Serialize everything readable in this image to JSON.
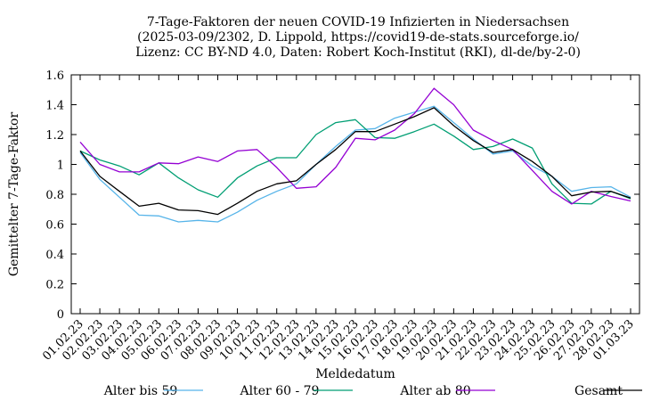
{
  "chart_data": {
    "type": "line",
    "title_lines": [
      "7-Tage-Faktoren der neuen COVID-19 Infizierten in Niedersachsen",
      "(2025-03-09/2302, D. Lippold, https://covid19-de-stats.sourceforge.io/",
      "Lizenz: CC BY-ND 4.0, Daten: Robert Koch-Institut (RKI), dl-de/by-2-0)"
    ],
    "xlabel": "Meldedatum",
    "ylabel": "Gemittelter 7-Tage-Faktor",
    "ylim": [
      0,
      1.6
    ],
    "yticks": [
      0,
      0.2,
      0.4,
      0.6,
      0.8,
      1,
      1.2,
      1.4,
      1.6
    ],
    "ytick_labels": [
      "0",
      "0.2",
      "0.4",
      "0.6",
      "0.8",
      "1",
      "1.2",
      "1.4",
      "1.6"
    ],
    "grid": false,
    "legend_position": "bottom",
    "categories": [
      "01.02.23",
      "02.02.23",
      "03.02.23",
      "04.02.23",
      "05.02.23",
      "06.02.23",
      "07.02.23",
      "08.02.23",
      "09.02.23",
      "10.02.23",
      "11.02.23",
      "12.02.23",
      "13.02.23",
      "14.02.23",
      "15.02.23",
      "16.02.23",
      "17.02.23",
      "18.02.23",
      "19.02.23",
      "20.02.23",
      "21.02.23",
      "22.02.23",
      "23.02.23",
      "24.02.23",
      "25.02.23",
      "26.02.23",
      "27.02.23",
      "28.02.23",
      "01.03.23"
    ],
    "series": [
      {
        "name": "Alter bis 59",
        "color": "#56b4e9",
        "values": [
          1.08,
          0.9,
          0.78,
          0.66,
          0.655,
          0.615,
          0.625,
          0.615,
          0.68,
          0.76,
          0.82,
          0.87,
          1.0,
          1.12,
          1.23,
          1.24,
          1.31,
          1.35,
          1.39,
          1.28,
          1.17,
          1.07,
          1.09,
          0.99,
          0.92,
          0.82,
          0.845,
          0.85,
          0.78
        ]
      },
      {
        "name": "Alter 60 - 79",
        "color": "#009e73",
        "values": [
          1.09,
          1.03,
          0.99,
          0.93,
          1.01,
          0.91,
          0.83,
          0.78,
          0.91,
          0.99,
          1.045,
          1.045,
          1.2,
          1.28,
          1.3,
          1.18,
          1.175,
          1.22,
          1.27,
          1.19,
          1.1,
          1.12,
          1.17,
          1.11,
          0.87,
          0.74,
          0.735,
          0.82,
          0.77
        ]
      },
      {
        "name": "Alter ab 80",
        "color": "#9400d3",
        "values": [
          1.15,
          1.0,
          0.95,
          0.95,
          1.01,
          1.005,
          1.05,
          1.02,
          1.09,
          1.1,
          0.98,
          0.84,
          0.85,
          0.98,
          1.175,
          1.165,
          1.23,
          1.34,
          1.51,
          1.4,
          1.23,
          1.16,
          1.1,
          0.96,
          0.82,
          0.735,
          0.82,
          0.785,
          0.755
        ]
      },
      {
        "name": "Gesamt",
        "color": "#000000",
        "values": [
          1.09,
          0.92,
          0.82,
          0.72,
          0.74,
          0.695,
          0.69,
          0.665,
          0.74,
          0.82,
          0.87,
          0.89,
          1.0,
          1.1,
          1.22,
          1.22,
          1.27,
          1.32,
          1.38,
          1.26,
          1.16,
          1.08,
          1.1,
          1.02,
          0.92,
          0.79,
          0.815,
          0.82,
          0.775
        ]
      }
    ]
  }
}
